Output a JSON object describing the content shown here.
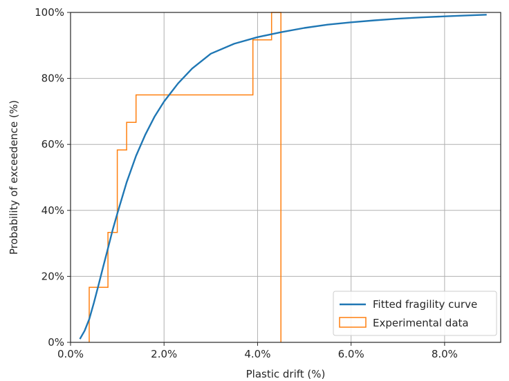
{
  "chart_data": {
    "type": "line",
    "xlabel": "Plastic drift (%)",
    "ylabel": "Probability of exceedence (%)",
    "xlim": [
      0,
      9.2
    ],
    "ylim": [
      0,
      100
    ],
    "x_ticks": [
      0,
      2,
      4,
      6,
      8
    ],
    "x_tick_labels": [
      "0.0%",
      "2.0%",
      "4.0%",
      "6.0%",
      "8.0%"
    ],
    "y_ticks": [
      0,
      20,
      40,
      60,
      80,
      100
    ],
    "y_tick_labels": [
      "0%",
      "20%",
      "40%",
      "60%",
      "80%",
      "100%"
    ],
    "grid": true,
    "legend_placement": "bottom-right",
    "series": [
      {
        "name": "Fitted fragility curve",
        "kind": "line",
        "color": "#1f77b4",
        "x": [
          0.2,
          0.3,
          0.4,
          0.5,
          0.6,
          0.7,
          0.8,
          0.9,
          1.0,
          1.2,
          1.4,
          1.6,
          1.8,
          2.0,
          2.3,
          2.6,
          3.0,
          3.5,
          4.0,
          4.5,
          5.0,
          5.5,
          6.0,
          6.5,
          7.0,
          7.5,
          8.0,
          8.5,
          8.9
        ],
        "y": [
          1,
          3.5,
          7,
          12,
          17.5,
          23,
          28.5,
          34,
          39,
          48.5,
          56.5,
          63,
          68.5,
          73,
          78.5,
          83,
          87.5,
          90.5,
          92.5,
          94,
          95.3,
          96.3,
          97,
          97.6,
          98.1,
          98.5,
          98.8,
          99.1,
          99.3
        ]
      },
      {
        "name": "Experimental data",
        "kind": "step",
        "color": "#ff7f0e",
        "x": [
          0.4,
          0.4,
          0.8,
          0.8,
          1.0,
          1.0,
          1.2,
          1.2,
          1.4,
          1.4,
          3.9,
          3.9,
          4.3,
          4.3,
          4.5,
          4.5
        ],
        "y": [
          0,
          16.7,
          16.7,
          33.3,
          33.3,
          58.3,
          58.3,
          66.7,
          66.7,
          75,
          75,
          91.7,
          91.7,
          100,
          100,
          0
        ]
      }
    ]
  }
}
